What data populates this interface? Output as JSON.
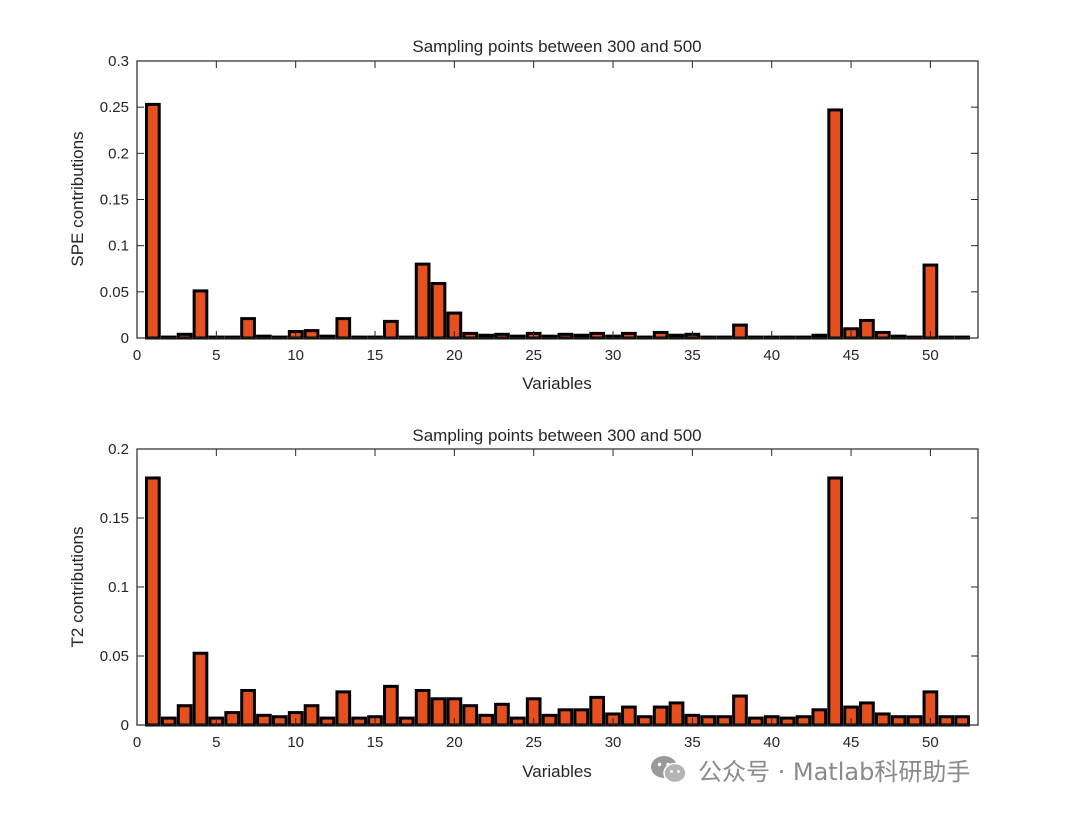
{
  "colors": {
    "bar_fill": "#e6501f",
    "bar_edge": "#000000",
    "axis": "#262626"
  },
  "watermark": {
    "icon": "wechat-icon",
    "text": "公众号 · Matlab科研助手"
  },
  "chart_data": [
    {
      "type": "bar",
      "title": "Sampling points between 300 and 500",
      "xlabel": "Variables",
      "ylabel": "SPE contributions",
      "xlim": [
        0,
        53
      ],
      "ylim": [
        0,
        0.3
      ],
      "xticks": [
        0,
        5,
        10,
        15,
        20,
        25,
        30,
        35,
        40,
        45,
        50
      ],
      "yticks": [
        0,
        0.05,
        0.1,
        0.15,
        0.2,
        0.25,
        0.3
      ],
      "ytick_labels": [
        "0",
        "0.05",
        "0.1",
        "0.15",
        "0.2",
        "0.25",
        "0.3"
      ],
      "grid": false,
      "x": [
        1,
        2,
        3,
        4,
        5,
        6,
        7,
        8,
        9,
        10,
        11,
        12,
        13,
        14,
        15,
        16,
        17,
        18,
        19,
        20,
        21,
        22,
        23,
        24,
        25,
        26,
        27,
        28,
        29,
        30,
        31,
        32,
        33,
        34,
        35,
        36,
        37,
        38,
        39,
        40,
        41,
        42,
        43,
        44,
        45,
        46,
        47,
        48,
        49,
        50,
        51,
        52
      ],
      "values": [
        0.253,
        0.001,
        0.004,
        0.051,
        0.001,
        0.001,
        0.021,
        0.002,
        0.001,
        0.007,
        0.008,
        0.002,
        0.021,
        0.001,
        0.001,
        0.018,
        0.001,
        0.08,
        0.059,
        0.027,
        0.005,
        0.003,
        0.004,
        0.002,
        0.005,
        0.002,
        0.004,
        0.003,
        0.005,
        0.002,
        0.005,
        0.001,
        0.006,
        0.003,
        0.004,
        0.001,
        0.001,
        0.014,
        0.001,
        0.001,
        0.001,
        0.001,
        0.003,
        0.247,
        0.01,
        0.019,
        0.006,
        0.002,
        0.001,
        0.079,
        0.001,
        0.001
      ]
    },
    {
      "type": "bar",
      "title": "Sampling points between 300 and 500",
      "xlabel": "Variables",
      "ylabel": "T2 contributions",
      "xlim": [
        0,
        53
      ],
      "ylim": [
        0,
        0.2
      ],
      "xticks": [
        0,
        5,
        10,
        15,
        20,
        25,
        30,
        35,
        40,
        45,
        50
      ],
      "yticks": [
        0,
        0.05,
        0.1,
        0.15,
        0.2
      ],
      "ytick_labels": [
        "0",
        "0.05",
        "0.1",
        "0.15",
        "0.2"
      ],
      "grid": false,
      "x": [
        1,
        2,
        3,
        4,
        5,
        6,
        7,
        8,
        9,
        10,
        11,
        12,
        13,
        14,
        15,
        16,
        17,
        18,
        19,
        20,
        21,
        22,
        23,
        24,
        25,
        26,
        27,
        28,
        29,
        30,
        31,
        32,
        33,
        34,
        35,
        36,
        37,
        38,
        39,
        40,
        41,
        42,
        43,
        44,
        45,
        46,
        47,
        48,
        49,
        50,
        51,
        52
      ],
      "values": [
        0.179,
        0.005,
        0.014,
        0.052,
        0.005,
        0.009,
        0.025,
        0.007,
        0.006,
        0.009,
        0.014,
        0.005,
        0.024,
        0.005,
        0.006,
        0.028,
        0.005,
        0.025,
        0.019,
        0.019,
        0.014,
        0.007,
        0.015,
        0.005,
        0.019,
        0.007,
        0.011,
        0.011,
        0.02,
        0.008,
        0.013,
        0.006,
        0.013,
        0.016,
        0.007,
        0.006,
        0.006,
        0.021,
        0.005,
        0.006,
        0.005,
        0.006,
        0.011,
        0.179,
        0.013,
        0.016,
        0.008,
        0.006,
        0.006,
        0.024,
        0.006,
        0.006
      ]
    }
  ]
}
